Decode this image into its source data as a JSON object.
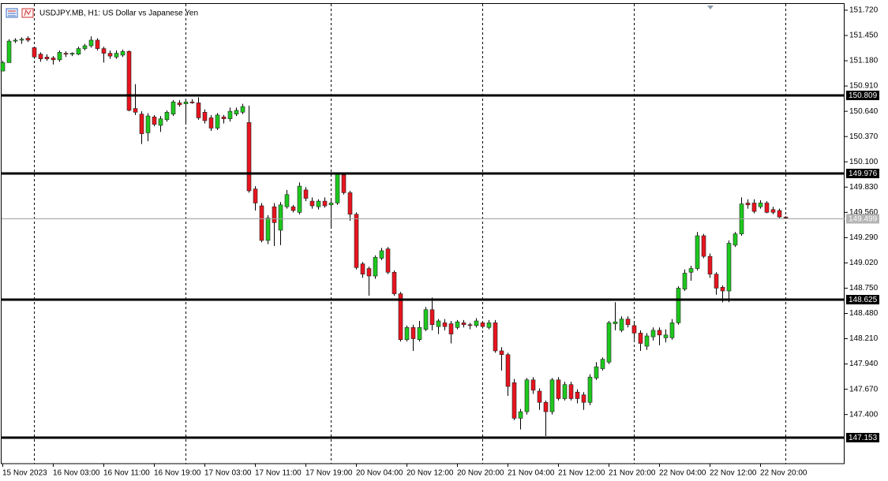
{
  "chart_data": {
    "type": "candlestick",
    "title": "USDJPY.MB, H1:  US Dollar vs Japanese Yen",
    "up_color": "#1ec81e",
    "down_color": "#e8141e",
    "wick_color": "#000000",
    "ylim": [
      146.875,
      151.787
    ],
    "yticks": [
      {
        "value": 151.72,
        "label": "151.720"
      },
      {
        "value": 151.45,
        "label": "151.450"
      },
      {
        "value": 151.18,
        "label": "151.180"
      },
      {
        "value": 150.91,
        "label": "150.910"
      },
      {
        "value": 150.64,
        "label": "150.640"
      },
      {
        "value": 150.37,
        "label": "150.370"
      },
      {
        "value": 150.1,
        "label": "150.100"
      },
      {
        "value": 149.83,
        "label": "149.830"
      },
      {
        "value": 149.56,
        "label": "149.560"
      },
      {
        "value": 149.29,
        "label": "149.290"
      },
      {
        "value": 149.02,
        "label": "149.020"
      },
      {
        "value": 148.75,
        "label": "148.750"
      },
      {
        "value": 148.48,
        "label": "148.480"
      },
      {
        "value": 148.21,
        "label": "148.210"
      },
      {
        "value": 147.94,
        "label": "147.940"
      },
      {
        "value": 147.67,
        "label": "147.670"
      },
      {
        "value": 147.4,
        "label": "147.400"
      }
    ],
    "levels": [
      150.809,
      149.976,
      148.625,
      147.153
    ],
    "current_price": 149.499,
    "categories": [
      "15 Nov 2023",
      null,
      null,
      null,
      null,
      null,
      null,
      null,
      "16 Nov 03:00",
      null,
      null,
      null,
      null,
      null,
      null,
      null,
      "16 Nov 11:00",
      null,
      null,
      null,
      null,
      null,
      null,
      null,
      "16 Nov 19:00",
      null,
      null,
      null,
      null,
      null,
      null,
      null,
      "17 Nov 03:00",
      null,
      null,
      null,
      null,
      null,
      null,
      null,
      "17 Nov 11:00",
      null,
      null,
      null,
      null,
      null,
      null,
      null,
      "17 Nov 19:00",
      null,
      null,
      null,
      null,
      null,
      null,
      null,
      "20 Nov 04:00",
      null,
      null,
      null,
      null,
      null,
      null,
      null,
      "20 Nov 12:00",
      null,
      null,
      null,
      null,
      null,
      null,
      null,
      "20 Nov 20:00",
      null,
      null,
      null,
      null,
      null,
      null,
      null,
      "21 Nov 04:00",
      null,
      null,
      null,
      null,
      null,
      null,
      null,
      "21 Nov 12:00",
      null,
      null,
      null,
      null,
      null,
      null,
      null,
      "21 Nov 20:00",
      null,
      null,
      null,
      null,
      null,
      null,
      null,
      "22 Nov 04:00",
      null,
      null,
      null,
      null,
      null,
      null,
      null,
      "22 Nov 12:00",
      null,
      null,
      null,
      null,
      null,
      null,
      null,
      "22 Nov 20:00",
      null,
      null,
      null,
      null
    ],
    "open": [
      151.07,
      151.16,
      151.39,
      151.4,
      151.42,
      151.32,
      151.25,
      151.22,
      151.21,
      151.19,
      151.26,
      151.25,
      151.25,
      151.31,
      151.34,
      151.4,
      151.31,
      151.26,
      151.22,
      151.24,
      151.28,
      150.67,
      150.61,
      150.41,
      150.58,
      150.49,
      150.55,
      150.61,
      150.73,
      150.72,
      150.74,
      150.73,
      150.63,
      150.57,
      150.46,
      150.58,
      150.56,
      150.61,
      150.63,
      150.52,
      149.81,
      149.63,
      149.26,
      149.62,
      149.37,
      149.62,
      149.62,
      149.56,
      149.8,
      149.68,
      149.62,
      149.68,
      149.64,
      149.66,
      149.96,
      149.77,
      149.54,
      149.01,
      148.96,
      148.88,
      149.07,
      149.17,
      148.92,
      148.69,
      148.2,
      148.33,
      148.2,
      148.31,
      148.52,
      148.34,
      148.38,
      148.37,
      148.33,
      148.38,
      148.36,
      148.35,
      148.38,
      148.33,
      148.38,
      148.08,
      148.04,
      147.74,
      147.36,
      147.43,
      147.77,
      147.65,
      147.53,
      147.43,
      147.77,
      147.57,
      147.72,
      147.64,
      147.61,
      147.53,
      147.79,
      147.89,
      147.96,
      148.37,
      148.3,
      148.42,
      148.35,
      148.27,
      148.13,
      148.23,
      148.3,
      148.22,
      148.22,
      148.38,
      148.74,
      148.92,
      148.96,
      149.31,
      149.09,
      148.9,
      148.76,
      148.72,
      149.21,
      149.33,
      149.66,
      149.66,
      149.62,
      149.66,
      149.59,
      149.58,
      149.51
    ],
    "high": [
      151.18,
      151.41,
      151.42,
      151.43,
      151.44,
      151.33,
      151.27,
      151.25,
      151.23,
      151.29,
      151.28,
      151.27,
      151.33,
      151.36,
      151.44,
      151.42,
      151.33,
      151.29,
      151.29,
      151.3,
      151.29,
      150.93,
      150.64,
      150.62,
      150.6,
      150.59,
      150.65,
      150.76,
      150.76,
      150.77,
      150.77,
      150.79,
      150.66,
      150.6,
      150.62,
      150.6,
      150.68,
      150.68,
      150.72,
      150.7,
      149.84,
      149.66,
      149.53,
      149.66,
      149.67,
      149.8,
      149.64,
      149.88,
      149.83,
      149.72,
      149.7,
      149.72,
      149.7,
      149.98,
      149.98,
      149.79,
      149.56,
      149.03,
      148.98,
      149.1,
      149.18,
      149.19,
      148.94,
      148.71,
      148.35,
      148.36,
      148.4,
      148.55,
      148.65,
      148.42,
      148.42,
      148.4,
      148.41,
      148.41,
      148.38,
      148.43,
      148.4,
      148.41,
      148.41,
      148.12,
      148.06,
      147.78,
      147.46,
      147.79,
      147.8,
      147.68,
      147.55,
      147.79,
      147.8,
      147.75,
      147.75,
      147.67,
      147.64,
      147.83,
      147.96,
      148.01,
      148.4,
      148.6,
      148.45,
      148.45,
      148.38,
      148.3,
      148.27,
      148.33,
      148.33,
      148.31,
      148.42,
      148.77,
      148.95,
      148.99,
      149.35,
      149.33,
      149.12,
      148.92,
      148.78,
      149.26,
      149.35,
      149.72,
      149.7,
      149.7,
      149.69,
      149.68,
      149.62,
      149.6,
      149.52
    ],
    "low": [
      151.07,
      151.16,
      151.37,
      151.36,
      151.38,
      151.2,
      151.17,
      151.18,
      151.14,
      151.17,
      151.22,
      151.23,
      151.24,
      151.29,
      151.32,
      151.29,
      151.16,
      151.2,
      151.2,
      151.22,
      150.64,
      150.6,
      150.29,
      150.32,
      150.48,
      150.42,
      150.53,
      150.59,
      150.69,
      150.5,
      150.72,
      150.55,
      150.51,
      150.43,
      150.44,
      150.51,
      150.53,
      150.59,
      150.61,
      149.77,
      149.58,
      149.24,
      149.22,
      149.2,
      149.21,
      149.6,
      149.56,
      149.54,
      149.68,
      149.6,
      149.59,
      149.61,
      149.39,
      149.64,
      149.75,
      149.47,
      148.95,
      148.86,
      148.67,
      148.85,
      149.05,
      148.9,
      148.67,
      148.18,
      148.18,
      148.08,
      148.18,
      148.29,
      148.3,
      148.26,
      148.3,
      148.16,
      148.31,
      148.33,
      148.31,
      148.33,
      148.32,
      148.31,
      148.06,
      147.87,
      147.6,
      147.34,
      147.24,
      147.4,
      147.62,
      147.45,
      147.17,
      147.4,
      147.55,
      147.55,
      147.55,
      147.52,
      147.45,
      147.5,
      147.77,
      147.87,
      147.94,
      148.3,
      148.28,
      148.33,
      148.2,
      148.08,
      148.09,
      148.19,
      148.14,
      148.17,
      148.2,
      148.36,
      148.72,
      148.83,
      148.94,
      149.07,
      148.86,
      148.68,
      148.6,
      148.6,
      149.19,
      149.31,
      149.6,
      149.55,
      149.6,
      149.55,
      149.54,
      149.5,
      149.49
    ],
    "close": [
      151.16,
      151.39,
      151.4,
      151.41,
      151.4,
      151.22,
      151.2,
      151.2,
      151.19,
      151.27,
      151.25,
      151.26,
      151.31,
      151.34,
      151.4,
      151.31,
      151.26,
      151.23,
      151.26,
      151.28,
      150.65,
      150.63,
      150.4,
      150.59,
      150.5,
      150.56,
      150.63,
      150.74,
      150.71,
      150.74,
      150.73,
      150.57,
      150.54,
      150.46,
      150.6,
      150.56,
      150.64,
      150.65,
      150.69,
      149.79,
      149.66,
      149.26,
      149.5,
      149.45,
      149.64,
      149.75,
      149.58,
      149.84,
      149.71,
      149.63,
      149.68,
      149.63,
      149.66,
      149.97,
      149.77,
      149.54,
      148.97,
      148.9,
      148.88,
      149.08,
      149.15,
      148.92,
      148.69,
      148.2,
      148.33,
      148.21,
      148.33,
      148.52,
      148.36,
      148.4,
      148.34,
      148.26,
      148.39,
      148.36,
      148.35,
      148.4,
      148.34,
      148.38,
      148.08,
      148.04,
      147.7,
      147.36,
      147.43,
      147.77,
      147.66,
      147.53,
      147.43,
      147.77,
      147.57,
      147.72,
      147.57,
      147.57,
      147.53,
      147.8,
      147.91,
      147.99,
      148.38,
      148.39,
      148.42,
      148.36,
      148.27,
      148.16,
      148.24,
      148.3,
      148.25,
      148.25,
      148.38,
      148.75,
      148.91,
      148.96,
      149.31,
      149.09,
      148.9,
      148.75,
      148.72,
      149.23,
      149.33,
      149.65,
      149.64,
      149.57,
      149.66,
      149.56,
      149.56,
      149.51,
      149.5
    ]
  }
}
